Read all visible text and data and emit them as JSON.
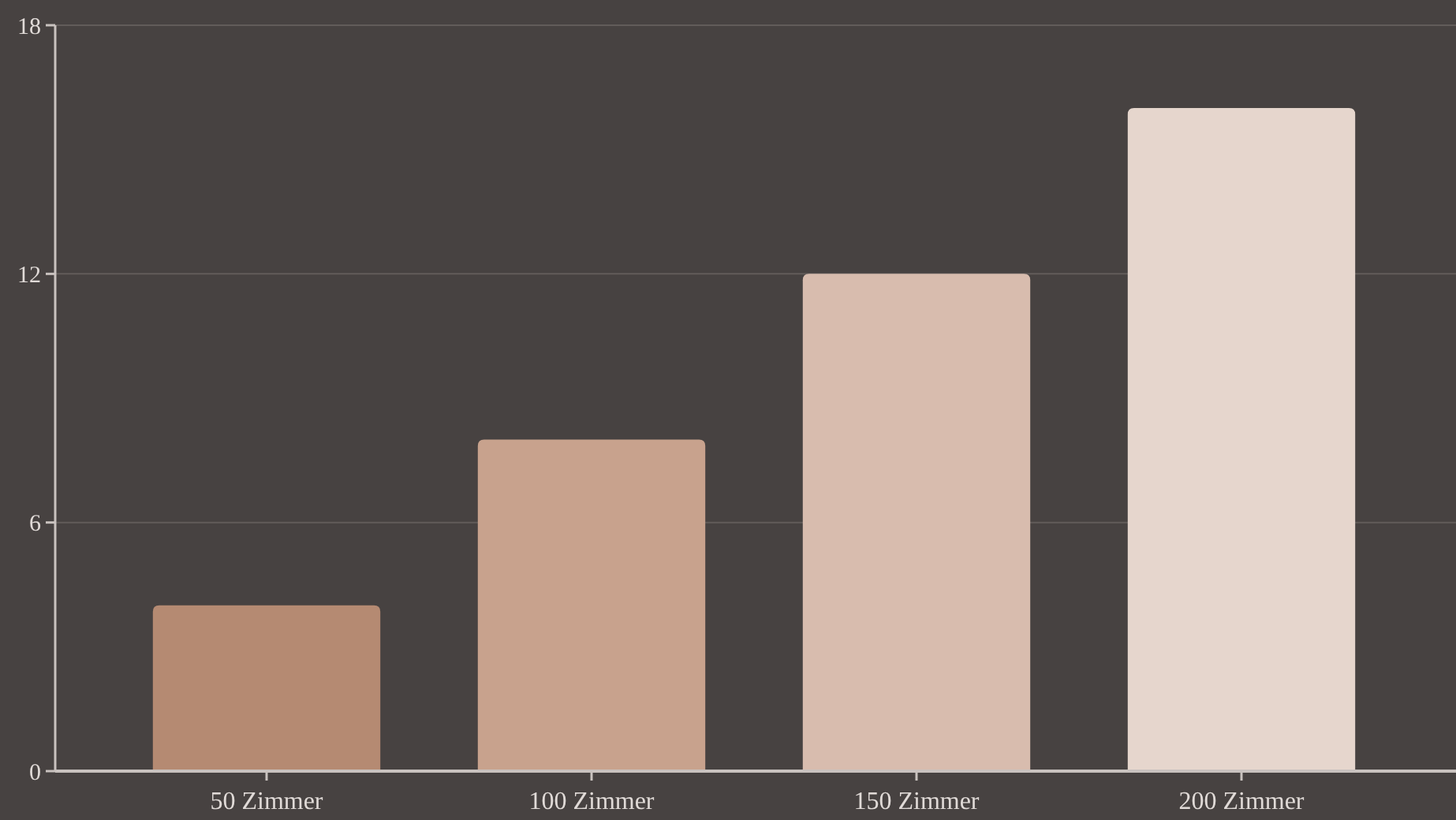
{
  "chart_data": {
    "type": "bar",
    "categories": [
      "50 Zimmer",
      "100 Zimmer",
      "150 Zimmer",
      "200 Zimmer"
    ],
    "values": [
      4,
      8,
      12,
      16
    ],
    "colors": [
      "#b58a72",
      "#c8a28d",
      "#d8bcae",
      "#e6d6cd"
    ],
    "ylim": [
      0,
      18
    ],
    "yticks": [
      0,
      6,
      12,
      18
    ],
    "grid": "y"
  }
}
